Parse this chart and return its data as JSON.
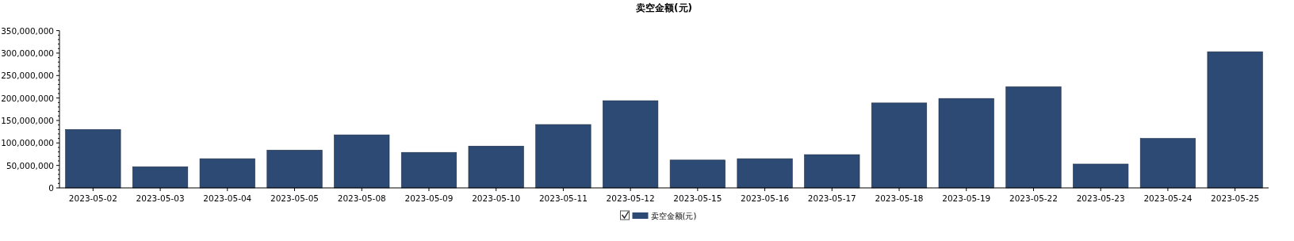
{
  "chart_data": {
    "type": "bar",
    "title": "卖空金额(元)",
    "categories": [
      "2023-05-02",
      "2023-05-03",
      "2023-05-04",
      "2023-05-05",
      "2023-05-08",
      "2023-05-09",
      "2023-05-10",
      "2023-05-11",
      "2023-05-12",
      "2023-05-15",
      "2023-05-16",
      "2023-05-17",
      "2023-05-18",
      "2023-05-19",
      "2023-05-22",
      "2023-05-23",
      "2023-05-24",
      "2023-05-25"
    ],
    "series": [
      {
        "name": "卖空金额(元)",
        "color": "#2c4a73",
        "values": [
          130000000,
          47000000,
          65000000,
          84000000,
          118000000,
          79000000,
          93000000,
          141000000,
          194000000,
          62000000,
          65000000,
          74000000,
          189000000,
          199000000,
          225000000,
          53000000,
          110000000,
          303000000
        ]
      }
    ],
    "ylim": [
      0,
      350000000
    ],
    "yticks": [
      {
        "value": 0,
        "label": "0"
      },
      {
        "value": 50000000,
        "label": "50,000,000"
      },
      {
        "value": 100000000,
        "label": "100,000,000"
      },
      {
        "value": 150000000,
        "label": "150,000,000"
      },
      {
        "value": 200000000,
        "label": "200,000,000"
      },
      {
        "value": 250000000,
        "label": "250,000,000"
      },
      {
        "value": 300000000,
        "label": "300,000,000"
      },
      {
        "value": 350000000,
        "label": "350,000,000"
      }
    ],
    "legend": "bottom",
    "grid": false
  }
}
